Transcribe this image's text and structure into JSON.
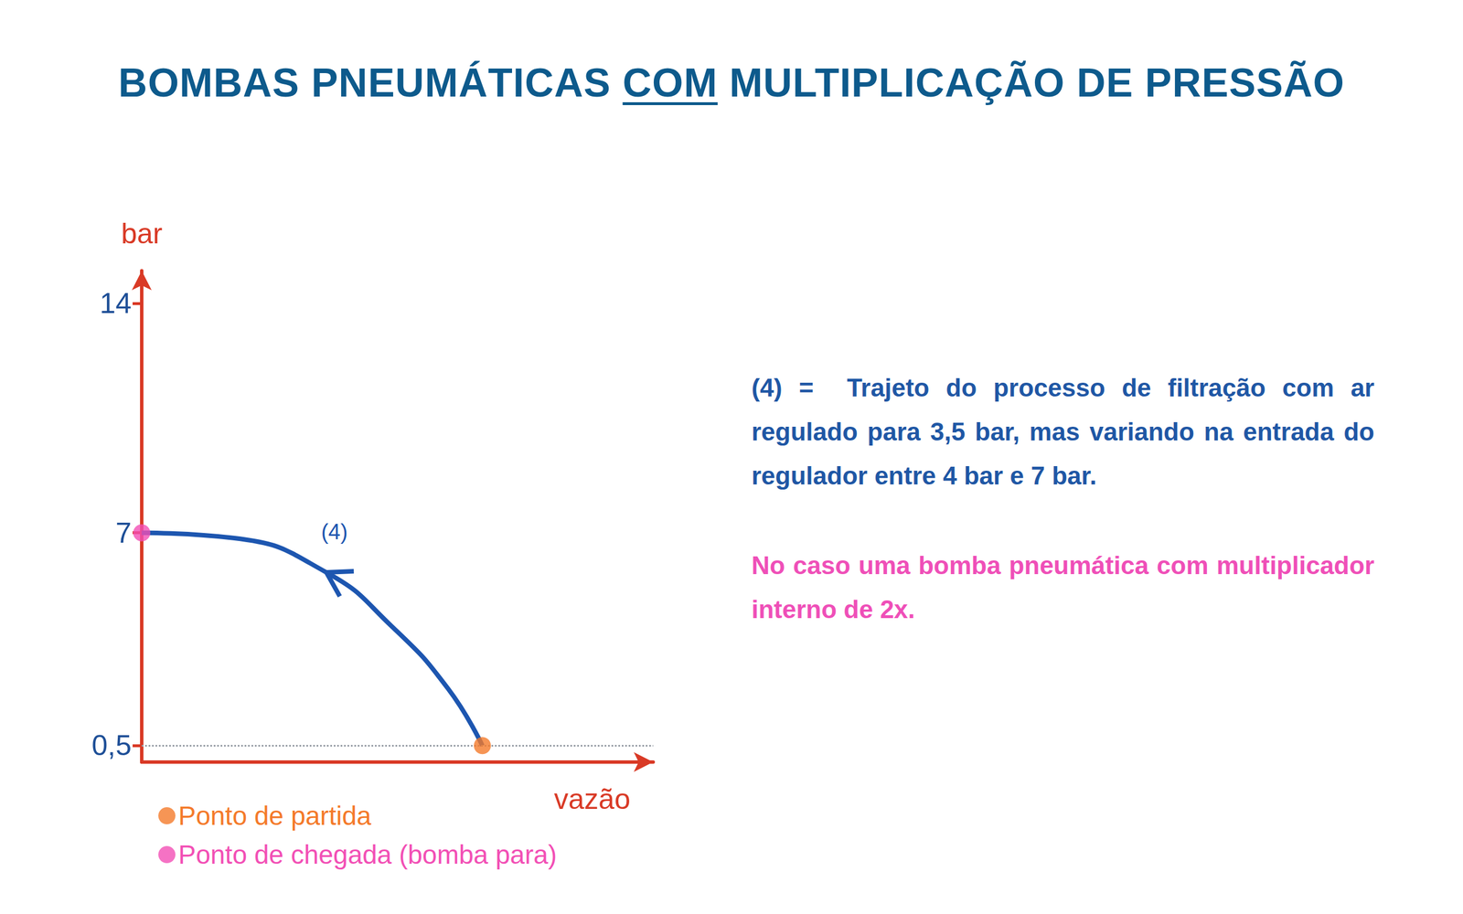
{
  "chart_data": {
    "type": "line",
    "title": "BOMBAS PNEUMÁTICAS COM MULTIPLICAÇÃO DE PRESSÃO",
    "x_label": "vazão",
    "y_label": "bar",
    "xlim": [
      0,
      10
    ],
    "ylim": [
      0,
      15
    ],
    "yticks": [
      {
        "value": 0.5,
        "label": "0,5"
      },
      7,
      14
    ],
    "grid": false,
    "tick_labels": "y",
    "series": [
      {
        "name": "(4)",
        "color": "#1d56b0",
        "x": [
          6.66,
          5.99,
          4.89,
          3.61,
          1.79,
          0
        ],
        "values": [
          0.5,
          2.24,
          4.14,
          5.79,
          6.84,
          7
        ]
      }
    ],
    "reference_y": 0.5,
    "points": [
      {
        "name": "Ponto de partida",
        "color": "#f47a2a",
        "x": 6.66,
        "y": 0.5
      },
      {
        "name": "Ponto de chegada (bomba para)",
        "color": "#f24fb5",
        "x": 0,
        "y": 7
      }
    ],
    "annotations": [
      {
        "text": "(4) =  Trajeto do processo de filtração com ar regulado para 3,5 bar, mas variando na entrada do regulador entre 4 bar e 7 bar.",
        "color": "#1f57a5"
      },
      {
        "text": "No caso uma bomba pneumática com multiplicador interno de 2x.",
        "color": "#ef4fb8"
      }
    ]
  }
}
